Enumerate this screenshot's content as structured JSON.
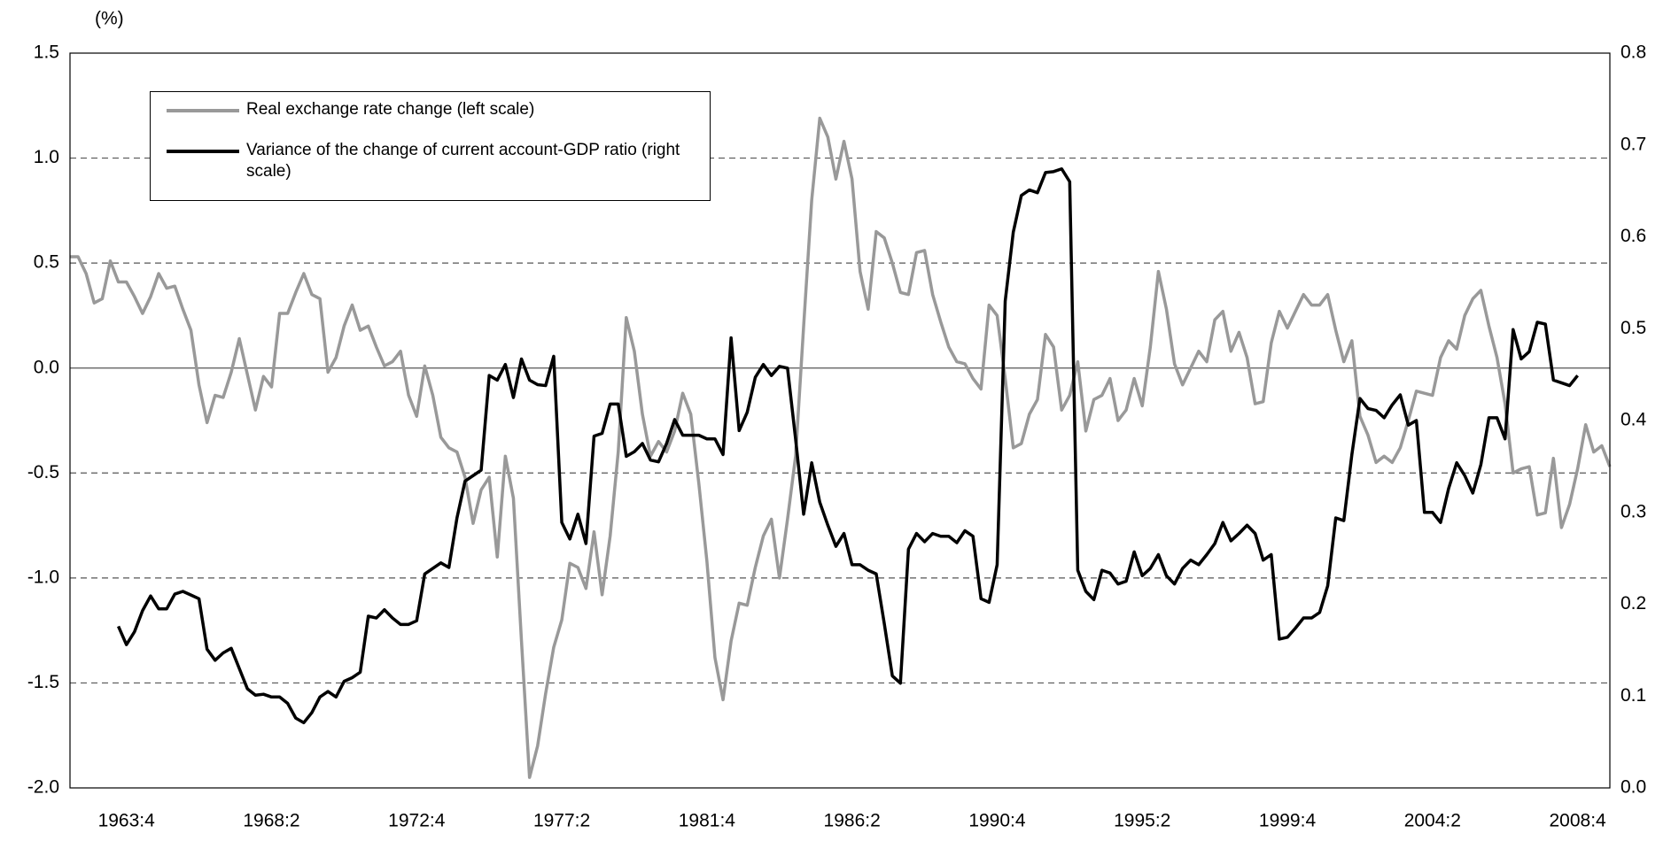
{
  "chart_data": {
    "type": "line",
    "y_unit_label": "(%)",
    "categories": [
      null,
      null,
      null,
      null,
      null,
      null,
      null,
      "1963:4",
      null,
      null,
      null,
      null,
      null,
      null,
      null,
      null,
      null,
      null,
      null,
      null,
      null,
      null,
      null,
      null,
      null,
      "1968:2",
      null,
      null,
      null,
      null,
      null,
      null,
      null,
      null,
      null,
      null,
      null,
      null,
      null,
      null,
      null,
      null,
      null,
      "1972:4",
      null,
      null,
      null,
      null,
      null,
      null,
      null,
      null,
      null,
      null,
      null,
      null,
      null,
      null,
      null,
      null,
      null,
      "1977:2",
      null,
      null,
      null,
      null,
      null,
      null,
      null,
      null,
      null,
      null,
      null,
      null,
      null,
      null,
      null,
      null,
      null,
      "1981:4",
      null,
      null,
      null,
      null,
      null,
      null,
      null,
      null,
      null,
      null,
      null,
      null,
      null,
      null,
      null,
      null,
      null,
      "1986:2",
      null,
      null,
      null,
      null,
      null,
      null,
      null,
      null,
      null,
      null,
      null,
      null,
      null,
      null,
      null,
      null,
      null,
      "1990:4",
      null,
      null,
      null,
      null,
      null,
      null,
      null,
      null,
      null,
      null,
      null,
      null,
      null,
      null,
      null,
      null,
      null,
      "1995:2",
      null,
      null,
      null,
      null,
      null,
      null,
      null,
      null,
      null,
      null,
      null,
      null,
      null,
      null,
      null,
      null,
      null,
      "1999:4",
      null,
      null,
      null,
      null,
      null,
      null,
      null,
      null,
      null,
      null,
      null,
      null,
      null,
      null,
      null,
      null,
      null,
      "2004:2",
      null,
      null,
      null,
      null,
      null,
      null,
      null,
      null,
      null,
      null,
      null,
      null,
      null,
      null,
      null,
      null,
      null,
      "2008:4",
      null,
      null,
      null,
      null
    ],
    "series": [
      {
        "name": "Real exchange rate change (left scale)",
        "color": "#999999",
        "axis": "y",
        "values": [
          0.53,
          0.53,
          0.45,
          0.31,
          0.33,
          0.51,
          0.41,
          0.41,
          0.34,
          0.26,
          0.34,
          0.45,
          0.38,
          0.39,
          0.28,
          0.18,
          -0.08,
          -0.26,
          -0.13,
          -0.14,
          -0.02,
          0.14,
          -0.03,
          -0.2,
          -0.04,
          -0.09,
          0.26,
          0.26,
          0.36,
          0.45,
          0.35,
          0.33,
          -0.02,
          0.05,
          0.2,
          0.3,
          0.18,
          0.2,
          0.1,
          0.01,
          0.03,
          0.08,
          -0.13,
          -0.23,
          0.01,
          -0.13,
          -0.33,
          -0.38,
          -0.4,
          -0.52,
          -0.74,
          -0.58,
          -0.52,
          -0.9,
          -0.42,
          -0.62,
          -1.3,
          -1.95,
          -1.8,
          -1.55,
          -1.33,
          -1.2,
          -0.93,
          -0.95,
          -1.05,
          -0.78,
          -1.08,
          -0.8,
          -0.4,
          0.24,
          0.08,
          -0.22,
          -0.42,
          -0.35,
          -0.4,
          -0.3,
          -0.12,
          -0.22,
          -0.55,
          -0.92,
          -1.38,
          -1.58,
          -1.3,
          -1.12,
          -1.13,
          -0.95,
          -0.8,
          -0.72,
          -1.0,
          -0.72,
          -0.42,
          0.2,
          0.8,
          1.19,
          1.1,
          0.9,
          1.08,
          0.9,
          0.46,
          0.28,
          0.65,
          0.62,
          0.5,
          0.36,
          0.35,
          0.55,
          0.56,
          0.35,
          0.22,
          0.1,
          0.03,
          0.02,
          -0.05,
          -0.1,
          0.3,
          0.25,
          -0.05,
          -0.38,
          -0.36,
          -0.22,
          -0.15,
          0.16,
          0.1,
          -0.2,
          -0.13,
          0.03,
          -0.3,
          -0.15,
          -0.13,
          -0.05,
          -0.25,
          -0.2,
          -0.05,
          -0.18,
          0.1,
          0.46,
          0.28,
          0.02,
          -0.08,
          0.0,
          0.08,
          0.03,
          0.23,
          0.27,
          0.08,
          0.17,
          0.05,
          -0.17,
          -0.16,
          0.12,
          0.27,
          0.19,
          0.27,
          0.35,
          0.3,
          0.3,
          0.35,
          0.18,
          0.03,
          0.13,
          -0.23,
          -0.32,
          -0.45,
          -0.42,
          -0.45,
          -0.38,
          -0.25,
          -0.11,
          -0.12,
          -0.13,
          0.05,
          0.13,
          0.09,
          0.25,
          0.33,
          0.37,
          0.2,
          0.05,
          -0.17,
          -0.5,
          -0.48,
          -0.47,
          -0.7,
          -0.69,
          -0.43,
          -0.76,
          -0.65,
          -0.48,
          -0.27,
          -0.4,
          -0.37,
          -0.47
        ]
      },
      {
        "name": "Variance of the change of current account-GDP ratio (right scale)",
        "color": "#000000",
        "axis": "y2",
        "values": [
          null,
          null,
          null,
          null,
          null,
          null,
          0.176,
          0.156,
          0.17,
          0.193,
          0.209,
          0.195,
          0.195,
          0.211,
          0.214,
          0.21,
          0.206,
          0.151,
          0.139,
          0.147,
          0.152,
          0.13,
          0.108,
          0.101,
          0.102,
          0.099,
          0.099,
          0.092,
          0.076,
          0.071,
          0.082,
          0.099,
          0.105,
          0.099,
          0.116,
          0.12,
          0.126,
          0.187,
          0.185,
          0.194,
          0.185,
          0.178,
          0.178,
          0.182,
          0.233,
          0.239,
          0.245,
          0.24,
          0.294,
          0.334,
          0.34,
          0.346,
          0.449,
          0.444,
          0.461,
          0.425,
          0.467,
          0.444,
          0.439,
          0.438,
          0.47,
          0.289,
          0.271,
          0.298,
          0.266,
          0.383,
          0.386,
          0.418,
          0.418,
          0.361,
          0.366,
          0.375,
          0.357,
          0.355,
          0.375,
          0.401,
          0.384,
          0.384,
          0.384,
          0.38,
          0.38,
          0.363,
          0.49,
          0.389,
          0.409,
          0.447,
          0.461,
          0.449,
          0.459,
          0.457,
          0.38,
          0.298,
          0.354,
          0.311,
          0.286,
          0.263,
          0.277,
          0.243,
          0.243,
          0.237,
          0.233,
          0.179,
          0.122,
          0.114,
          0.26,
          0.277,
          0.268,
          0.277,
          0.274,
          0.274,
          0.267,
          0.28,
          0.274,
          0.206,
          0.202,
          0.243,
          0.53,
          0.605,
          0.645,
          0.651,
          0.648,
          0.67,
          0.671,
          0.674,
          0.66,
          0.237,
          0.214,
          0.205,
          0.237,
          0.234,
          0.222,
          0.225,
          0.257,
          0.231,
          0.239,
          0.254,
          0.231,
          0.222,
          0.239,
          0.248,
          0.243,
          0.254,
          0.266,
          0.289,
          0.269,
          0.277,
          0.286,
          0.277,
          0.248,
          0.254,
          0.162,
          0.164,
          0.174,
          0.185,
          0.185,
          0.191,
          0.22,
          0.294,
          0.291,
          0.363,
          0.424,
          0.413,
          0.411,
          0.403,
          0.417,
          0.428,
          0.395,
          0.4,
          0.3,
          0.3,
          0.289,
          0.326,
          0.354,
          0.34,
          0.321,
          0.352,
          0.403,
          0.403,
          0.38,
          0.499,
          0.467,
          0.475,
          0.507,
          0.505,
          0.444,
          0.441,
          0.438,
          0.449,
          null,
          null,
          null,
          null
        ]
      }
    ],
    "ylim": [
      -2,
      1.5
    ],
    "yticks": [
      {
        "value": -2,
        "label": "-2.0"
      },
      -1.5,
      {
        "value": -1,
        "label": "-1.0"
      },
      -0.5,
      {
        "value": 0,
        "label": "0.0"
      },
      0.5,
      {
        "value": 1,
        "label": "1.0"
      },
      1.5
    ],
    "y2lim": [
      0,
      0.8
    ],
    "y2ticks": [
      {
        "value": 0,
        "label": "0.0"
      },
      0.1,
      0.2,
      0.3,
      0.4,
      0.5,
      0.6,
      0.7,
      0.8
    ],
    "grid": true,
    "legend": "top-left"
  }
}
